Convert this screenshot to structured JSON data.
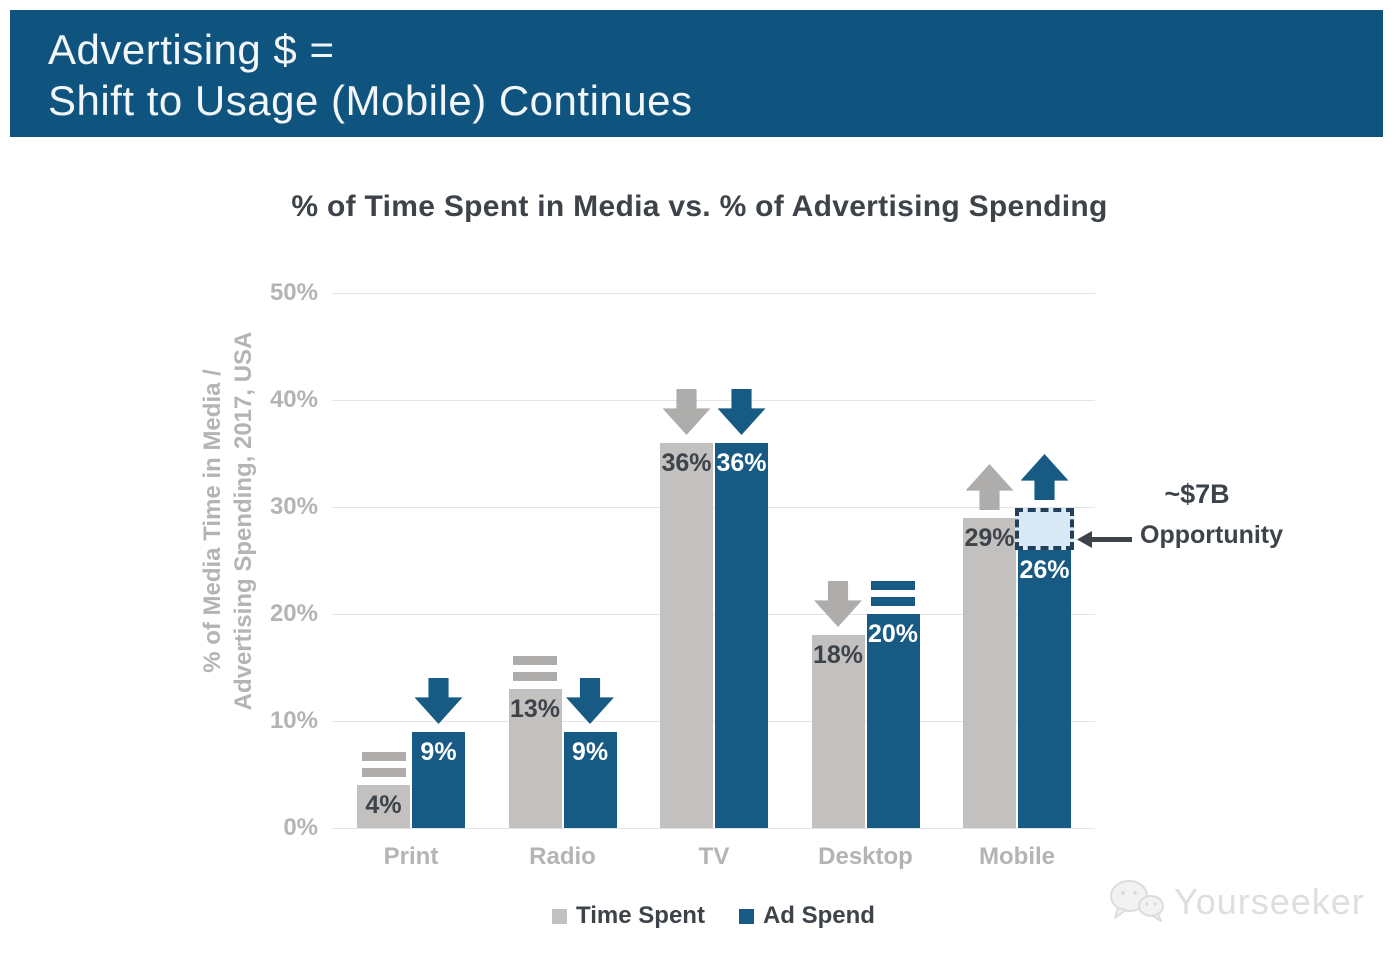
{
  "banner": {
    "line1": "Advertising $ =",
    "line2": "Shift to Usage (Mobile) Continues"
  },
  "chart_data": {
    "type": "bar",
    "title": "% of Time Spent in Media vs. % of Advertising Spending",
    "ylabel_line1": "% of Media Time in Media /",
    "ylabel_line2": "Advertising Spending, 2017, USA",
    "categories": [
      "Print",
      "Radio",
      "TV",
      "Desktop",
      "Mobile"
    ],
    "series": [
      {
        "name": "Time Spent",
        "color": "#c2c1c0",
        "indicator_color": "#aeadab",
        "label_color": "#3d4349",
        "values": [
          4,
          13,
          36,
          18,
          29
        ],
        "labels": [
          "4%",
          "13%",
          "36%",
          "18%",
          "29%"
        ],
        "trend": [
          "equal",
          "equal",
          "down",
          "down",
          "up"
        ]
      },
      {
        "name": "Ad Spend",
        "color": "#175a84",
        "indicator_color": "#175a84",
        "label_color": "#ffffff",
        "values": [
          9,
          9,
          36,
          20,
          26
        ],
        "labels": [
          "9%",
          "9%",
          "36%",
          "20%",
          "26%"
        ],
        "trend": [
          "down",
          "down",
          "down",
          "equal",
          "up"
        ]
      }
    ],
    "ylim": [
      0,
      50
    ],
    "yticks": [
      "0%",
      "10%",
      "20%",
      "30%",
      "40%",
      "50%"
    ],
    "grid": true,
    "legend_position": "bottom",
    "opportunity_gap": {
      "category": "Mobile",
      "series": "Ad Spend",
      "from_value": 26,
      "to_value": 29.2,
      "fill": "#d9eaf6",
      "border": "#223f5c"
    }
  },
  "annotation": {
    "line1": "~$7B",
    "line2": "Opportunity"
  },
  "watermark": {
    "text": "Yourseeker"
  },
  "colors": {
    "banner_bg": "#0f547e",
    "time_spent": "#c2c1c0",
    "ad_spend": "#175a84",
    "grid": "#e4e4e4",
    "axis_text": "#b5b4b2",
    "dark_text": "#3d4349"
  }
}
